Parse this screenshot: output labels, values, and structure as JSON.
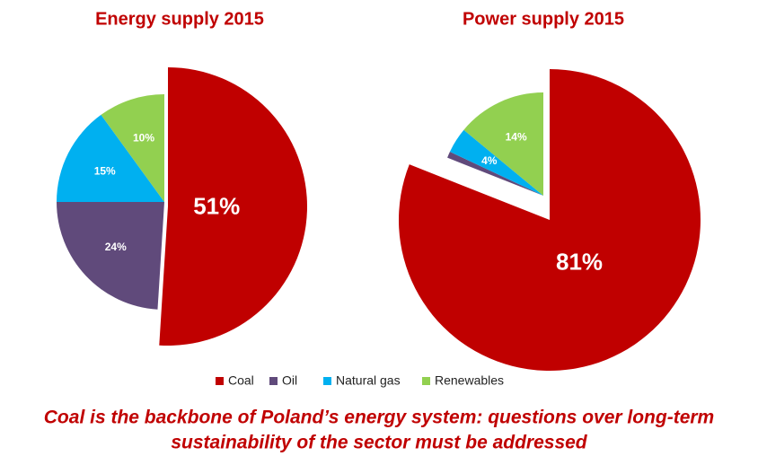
{
  "chart_data": [
    {
      "type": "pie",
      "title": "Energy supply 2015",
      "categories": [
        "Coal",
        "Oil",
        "Natural gas",
        "Renewables"
      ],
      "values": [
        51,
        24,
        15,
        10
      ],
      "value_labels": [
        "51%",
        "24%",
        "15%",
        "10%"
      ],
      "colors": [
        "#c00000",
        "#604a7b",
        "#00b0f0",
        "#92d050"
      ]
    },
    {
      "type": "pie",
      "title": "Power supply 2015",
      "categories": [
        "Coal",
        "Oil",
        "Natural gas",
        "Renewables"
      ],
      "values": [
        81,
        1,
        4,
        14
      ],
      "value_labels": [
        "81%",
        null,
        "4%",
        "14%"
      ],
      "colors": [
        "#c00000",
        "#604a7b",
        "#00b0f0",
        "#92d050"
      ]
    }
  ],
  "caption": [
    "Coal is the backbone of Poland’s energy system: questions over long-term",
    "sustainability of the sector must be addressed"
  ]
}
